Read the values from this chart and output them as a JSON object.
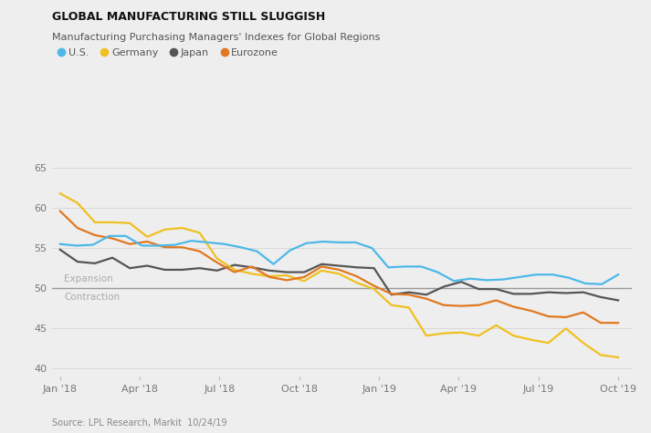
{
  "title": "GLOBAL MANUFACTURING STILL SLUGGISH",
  "subtitle": "Manufacturing Purchasing Managers' Indexes for Global Regions",
  "source": "Source: LPL Research, Markit  10/24/19",
  "background_color": "#eeeeee",
  "line_color_us": "#4db8e8",
  "line_color_germany": "#f0c020",
  "line_color_japan": "#555555",
  "line_color_eurozone": "#e07820",
  "ylim": [
    39,
    67
  ],
  "yticks": [
    40,
    45,
    50,
    55,
    60,
    65
  ],
  "expansion_label": "Expansion",
  "contraction_label": "Contraction",
  "threshold": 50,
  "xtick_labels": [
    "Jan '18",
    "Apr '18",
    "Jul '18",
    "Oct '18",
    "Jan '19",
    "Apr '19",
    "Jul '19",
    "Oct '19"
  ],
  "us": [
    55.5,
    55.3,
    55.4,
    56.5,
    56.5,
    55.3,
    55.3,
    55.4,
    55.9,
    55.7,
    55.5,
    55.1,
    54.6,
    53.0,
    54.7,
    55.6,
    55.8,
    55.7,
    55.7,
    55.0,
    52.6,
    52.7,
    52.7,
    52.0,
    50.9,
    51.2,
    51.0,
    51.1,
    51.4,
    51.7,
    51.7,
    51.3,
    50.6,
    50.5,
    51.7
  ],
  "germany": [
    61.8,
    60.6,
    58.2,
    58.2,
    58.1,
    56.4,
    57.3,
    57.5,
    56.9,
    53.7,
    52.3,
    51.8,
    51.5,
    51.6,
    50.9,
    52.2,
    51.8,
    50.7,
    49.9,
    47.9,
    47.6,
    44.1,
    44.4,
    44.5,
    44.1,
    45.4,
    44.1,
    43.6,
    43.2,
    45.0,
    43.2,
    41.7,
    41.4
  ],
  "japan": [
    54.8,
    53.3,
    53.1,
    53.8,
    52.5,
    52.8,
    52.3,
    52.3,
    52.5,
    52.2,
    52.9,
    52.6,
    52.2,
    52.0,
    52.0,
    53.0,
    52.8,
    52.6,
    52.5,
    49.2,
    49.5,
    49.2,
    50.2,
    50.8,
    49.9,
    49.9,
    49.3,
    49.3,
    49.5,
    49.4,
    49.5,
    48.9,
    48.5
  ],
  "eurozone": [
    59.6,
    57.5,
    56.6,
    56.2,
    55.5,
    55.8,
    55.1,
    55.1,
    54.6,
    53.2,
    52.0,
    52.7,
    51.4,
    51.0,
    51.4,
    52.7,
    52.3,
    51.5,
    50.3,
    49.3,
    49.2,
    48.7,
    47.9,
    47.8,
    47.9,
    48.5,
    47.7,
    47.2,
    46.5,
    46.4,
    47.0,
    45.7,
    45.7
  ]
}
